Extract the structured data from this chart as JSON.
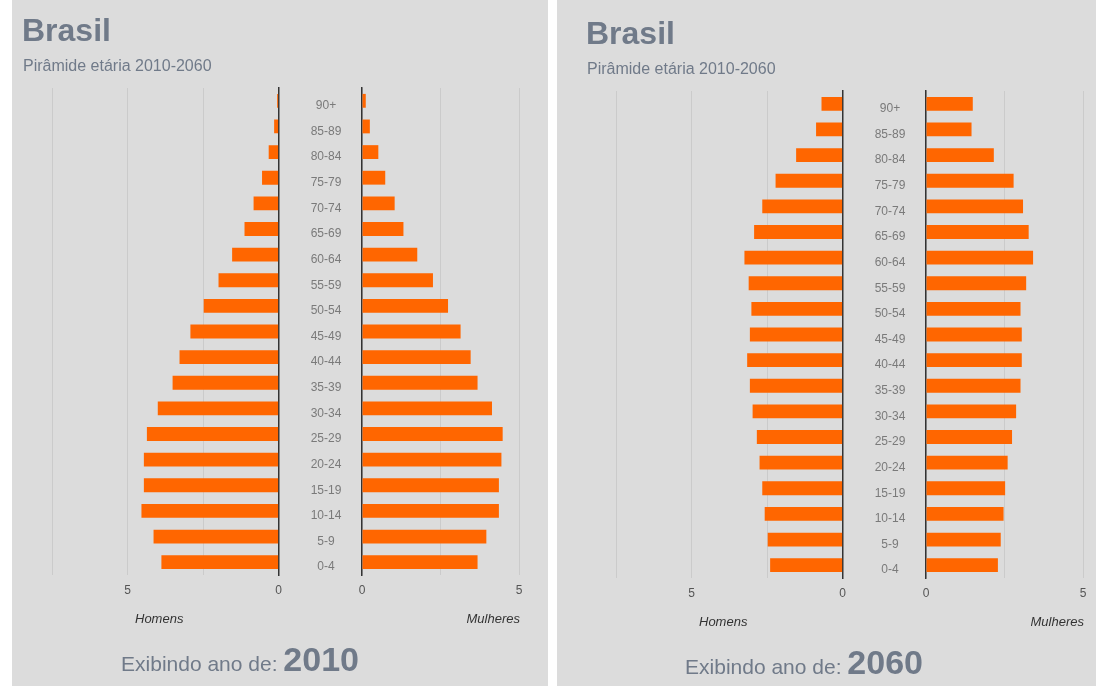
{
  "chart_data": [
    {
      "type": "bar",
      "orientation": "horizontal",
      "title": "Brasil",
      "subtitle": "Pirâmide etária 2010-2060",
      "xlabel": "Homens",
      "annotations": [
        "Exibindo ano de: 2010"
      ],
      "categories": [
        null,
        null,
        null,
        null,
        null,
        null,
        null,
        null,
        null,
        null,
        null,
        null,
        null,
        null,
        null,
        null,
        null,
        null,
        null
      ],
      "values": [
        0.05,
        0.15,
        0.33,
        0.55,
        0.83,
        1.13,
        1.54,
        1.99,
        2.48,
        2.92,
        3.28,
        3.51,
        4.0,
        4.36,
        4.46,
        4.46,
        4.54,
        4.14,
        3.88
      ],
      "color": "#ff6600",
      "xlim": [
        7.5,
        0
      ],
      "xticks": [
        {
          "value": 7.5,
          "label": null
        },
        {
          "value": 5,
          "label": "5"
        },
        {
          "value": 2.5,
          "label": null
        },
        {
          "value": 0,
          "label": "0"
        }
      ],
      "grid": "x",
      "tick_labels": "x"
    },
    {
      "type": "bar",
      "orientation": "horizontal",
      "xlabel": "Mulheres",
      "categories": [
        "90+",
        "85-89",
        "80-84",
        "75-79",
        "70-74",
        "65-69",
        "60-64",
        "55-59",
        "50-54",
        "45-49",
        "40-44",
        "35-39",
        "30-34",
        "25-29",
        "20-24",
        "15-19",
        "10-14",
        "5-9",
        "0-4"
      ],
      "values": [
        0.12,
        0.25,
        0.52,
        0.74,
        1.04,
        1.32,
        1.76,
        2.26,
        2.74,
        3.14,
        3.46,
        3.68,
        4.14,
        4.48,
        4.44,
        4.36,
        4.36,
        3.96,
        3.68
      ],
      "color": "#ff6600",
      "xlim": [
        0,
        5
      ],
      "xticks": [
        {
          "value": 0,
          "label": "0"
        },
        {
          "value": 2.5,
          "label": null
        },
        {
          "value": 5,
          "label": "5"
        }
      ],
      "grid": "x"
    },
    {
      "type": "bar",
      "orientation": "horizontal",
      "title": "Brasil",
      "subtitle": "Pirâmide etária 2010-2060",
      "xlabel": "Homens",
      "annotations": [
        "Exibindo ano de: 2060"
      ],
      "categories": [
        null,
        null,
        null,
        null,
        null,
        null,
        null,
        null,
        null,
        null,
        null,
        null,
        null,
        null,
        null,
        null,
        null,
        null,
        null
      ],
      "values": [
        0.7,
        0.88,
        1.54,
        2.22,
        2.66,
        2.93,
        3.25,
        3.11,
        3.02,
        3.07,
        3.16,
        3.07,
        2.98,
        2.84,
        2.75,
        2.66,
        2.58,
        2.48,
        2.4
      ],
      "color": "#ff6600",
      "xlim": [
        7.5,
        0
      ],
      "xticks": [
        {
          "value": 7.5,
          "label": null
        },
        {
          "value": 5,
          "label": "5"
        },
        {
          "value": 2.5,
          "label": null
        },
        {
          "value": 0,
          "label": "0"
        }
      ],
      "grid": "x",
      "tick_labels": "x"
    },
    {
      "type": "bar",
      "orientation": "horizontal",
      "xlabel": "Mulheres",
      "categories": [
        "90+",
        "85-89",
        "80-84",
        "75-79",
        "70-74",
        "65-69",
        "60-64",
        "55-59",
        "50-54",
        "45-49",
        "40-44",
        "35-39",
        "30-34",
        "25-29",
        "20-24",
        "15-19",
        "10-14",
        "5-9",
        "0-4"
      ],
      "values": [
        1.49,
        1.45,
        2.16,
        2.79,
        3.09,
        3.27,
        3.41,
        3.19,
        3.01,
        3.05,
        3.05,
        3.01,
        2.87,
        2.74,
        2.6,
        2.52,
        2.47,
        2.38,
        2.29
      ],
      "color": "#ff6600",
      "xlim": [
        0,
        5
      ],
      "xticks": [
        {
          "value": 0,
          "label": "0"
        },
        {
          "value": 2.5,
          "label": null
        },
        {
          "value": 5,
          "label": "5"
        }
      ],
      "grid": "x"
    }
  ]
}
